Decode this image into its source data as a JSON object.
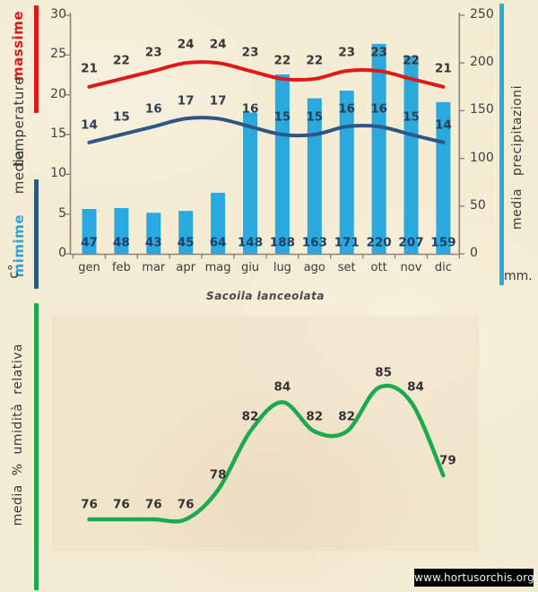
{
  "page": {
    "title": "Sacoila lanceolata",
    "watermark": "www.hortusorchis.org",
    "background": "#f5ecd4"
  },
  "left_labels": {
    "massime": "massime",
    "temperature": "temperature",
    "media": "media",
    "mimime": "mimime",
    "unit": "c°"
  },
  "right_labels": {
    "text": "media precipitazioni",
    "unit": "mm."
  },
  "bottom_labels": {
    "humidity_axis": "media % umidità relativa"
  },
  "colors": {
    "background": "#f5ecd4",
    "max_line": "#e0181a",
    "min_line": "#2e5788",
    "bar": "#29a9de",
    "right_accent": "#29a9de",
    "green": "#1caa50",
    "axis": "#8a8578",
    "precip_text": "#1c3e6d",
    "mimime_text": "#2fa3d9",
    "watermark_bg": "#000000",
    "watermark_text": "#f2f2f2"
  },
  "chart_data": [
    {
      "type": "bar",
      "title": "Sacoila lanceolata",
      "categories": [
        "gen",
        "feb",
        "mar",
        "apr",
        "mag",
        "giu",
        "lug",
        "ago",
        "set",
        "ott",
        "nov",
        "dic"
      ],
      "series": [
        {
          "name": "massime",
          "type": "line",
          "color": "#e0181a",
          "values": [
            21,
            22,
            23,
            24,
            24,
            23,
            22,
            22,
            23,
            23,
            22,
            21
          ]
        },
        {
          "name": "mimime",
          "type": "line",
          "color": "#2e5788",
          "values": [
            14,
            15,
            16,
            17,
            17,
            16,
            15,
            15,
            16,
            16,
            15,
            14
          ]
        },
        {
          "name": "media precipitazioni",
          "type": "bar",
          "color": "#29a9de",
          "values": [
            47,
            48,
            43,
            45,
            64,
            148,
            188,
            163,
            171,
            220,
            207,
            159
          ]
        }
      ],
      "left_axis": {
        "title": "c° media temperature",
        "min": 0,
        "max": 30,
        "step": 5
      },
      "right_axis": {
        "title": "media precipitazioni mm.",
        "min": 0,
        "max": 250,
        "step": 50
      },
      "grid": false,
      "legend_position": "none"
    },
    {
      "type": "line",
      "title": "",
      "categories": [
        "gen",
        "feb",
        "mar",
        "apr",
        "mag",
        "giu",
        "lug",
        "ago",
        "set",
        "ott",
        "nov",
        "dic"
      ],
      "series": [
        {
          "name": "media % umidità relativa",
          "type": "line",
          "color": "#1caa50",
          "values": [
            76,
            76,
            76,
            76,
            78,
            82,
            84,
            82,
            82,
            85,
            84,
            79
          ]
        }
      ],
      "ylabel": "media % umidità relativa",
      "x_axis_visible": false,
      "grid": false,
      "legend_position": "none"
    }
  ]
}
